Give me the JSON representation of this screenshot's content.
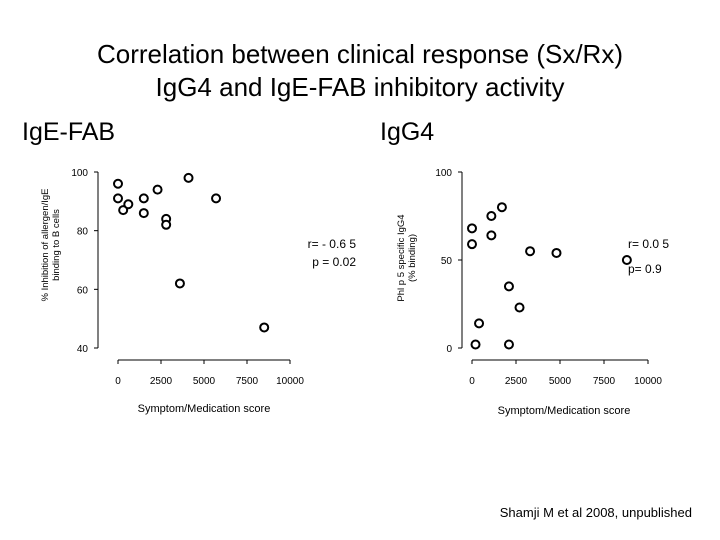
{
  "title": {
    "line1": "Correlation between clinical response (Sx/Rx)",
    "line2": "IgG4 and IgE-FAB inhibitory activity"
  },
  "panels": {
    "left_label": "IgE-FAB",
    "right_label": "IgG4"
  },
  "credit": "Shamji M et al 2008, unpublished",
  "chart_data": [
    {
      "type": "scatter",
      "title": "IgE-FAB",
      "xlabel": "Symptom/Medication score",
      "ylabel": [
        "% Inhibition of allergen/IgE",
        "binding to B cells"
      ],
      "xlim": [
        0,
        10000
      ],
      "ylim": [
        40,
        100
      ],
      "xticks": [
        0,
        2500,
        5000,
        7500,
        10000
      ],
      "xtick_labels": [
        "0",
        "2500",
        "5000",
        "7500",
        "10000"
      ],
      "yticks": [
        40,
        60,
        80,
        100
      ],
      "ytick_labels": [
        "40",
        "60",
        "80",
        "100"
      ],
      "annotations": [
        "r=  - 0.6 5",
        "p = 0.02"
      ],
      "grid": false,
      "points": [
        {
          "x": 0,
          "y": 96
        },
        {
          "x": 0,
          "y": 91
        },
        {
          "x": 300,
          "y": 87
        },
        {
          "x": 600,
          "y": 89
        },
        {
          "x": 1500,
          "y": 91
        },
        {
          "x": 1500,
          "y": 86
        },
        {
          "x": 2300,
          "y": 94
        },
        {
          "x": 2800,
          "y": 84
        },
        {
          "x": 2800,
          "y": 82
        },
        {
          "x": 4100,
          "y": 98
        },
        {
          "x": 5700,
          "y": 91
        },
        {
          "x": 3600,
          "y": 62
        },
        {
          "x": 8500,
          "y": 47
        }
      ]
    },
    {
      "type": "scatter",
      "title": "IgG4",
      "xlabel": "Symptom/Medication score",
      "ylabel": [
        "Phl p 5 specific IgG4",
        "(% binding)"
      ],
      "xlim": [
        0,
        10000
      ],
      "ylim": [
        0,
        100
      ],
      "xticks": [
        0,
        2500,
        5000,
        7500,
        10000
      ],
      "xtick_labels": [
        "0",
        "2500",
        "5000",
        "7500",
        "10000"
      ],
      "yticks": [
        0,
        50,
        100
      ],
      "ytick_labels": [
        "0",
        "50",
        "100"
      ],
      "annotations": [
        "r=  0.0 5",
        "p= 0.9"
      ],
      "grid": false,
      "points": [
        {
          "x": 0,
          "y": 68
        },
        {
          "x": 0,
          "y": 59
        },
        {
          "x": 1100,
          "y": 75
        },
        {
          "x": 1100,
          "y": 64
        },
        {
          "x": 1700,
          "y": 80
        },
        {
          "x": 3300,
          "y": 55
        },
        {
          "x": 4800,
          "y": 54
        },
        {
          "x": 8800,
          "y": 50
        },
        {
          "x": 2100,
          "y": 35
        },
        {
          "x": 2700,
          "y": 23
        },
        {
          "x": 400,
          "y": 14
        },
        {
          "x": 200,
          "y": 2
        },
        {
          "x": 2100,
          "y": 2
        }
      ]
    }
  ]
}
